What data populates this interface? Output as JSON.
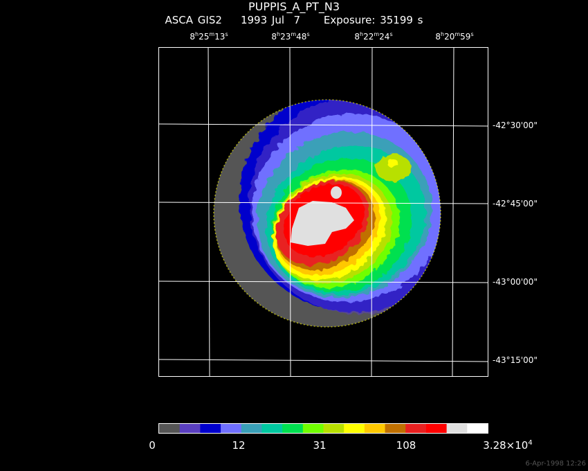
{
  "title": "PUPPIS_A_PT_N3",
  "subtitle": "ASCA GIS2    1993 Jul  7     Exposure: 35199 s",
  "ra_labels": [
    {
      "h": "8",
      "m": "25",
      "s": "13"
    },
    {
      "h": "8",
      "m": "23",
      "s": "48"
    },
    {
      "h": "8",
      "m": "22",
      "s": "24"
    },
    {
      "h": "8",
      "m": "20",
      "s": "59"
    }
  ],
  "dec_labels": [
    "-42°30'00\"",
    "-42°45'00\"",
    "-43°00'00\"",
    "-43°15'00\""
  ],
  "colorbar": {
    "colors": [
      "#555555",
      "#5a3fc0",
      "#0000cc",
      "#7070ff",
      "#3aa0b8",
      "#00c8a0",
      "#00e050",
      "#70ff00",
      "#b8e000",
      "#ffff00",
      "#ffc800",
      "#c07000",
      "#e82020",
      "#ff0000",
      "#e0e0e0",
      "#ffffff"
    ],
    "labels": [
      "0",
      "12",
      "31",
      "108"
    ],
    "max_label": {
      "mantissa": "3.28×10",
      "exp": "4"
    }
  },
  "timestamp": "6-Apr-1998 12:26"
}
